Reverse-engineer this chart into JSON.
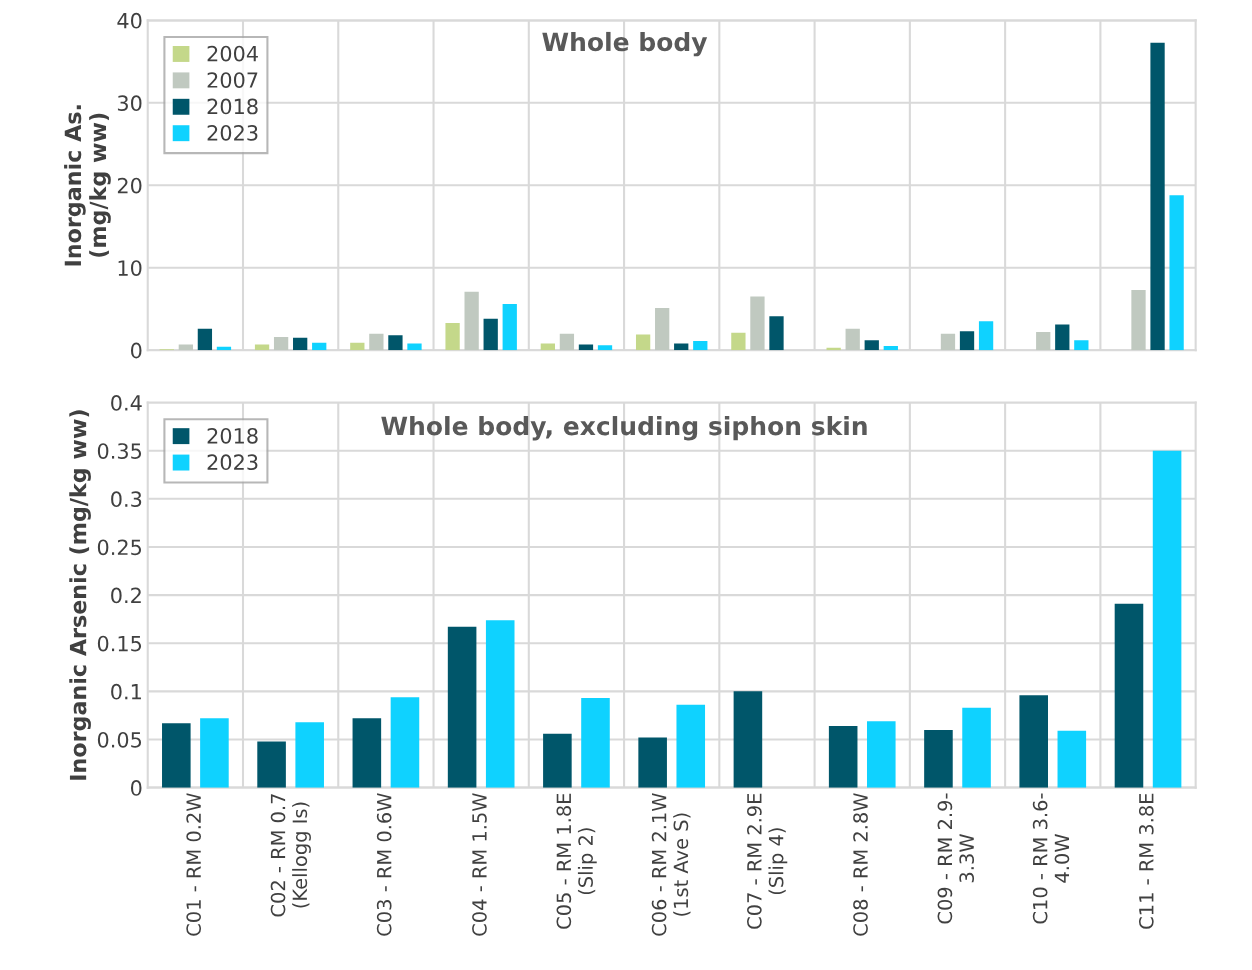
{
  "chart_data": [
    {
      "type": "bar",
      "title": "Whole body",
      "ylabel": "Inorganic As.\n(mg/kg ww)",
      "categories": [
        null,
        null,
        null,
        null,
        null,
        null,
        null,
        null,
        null,
        null,
        null
      ],
      "series": [
        {
          "name": "2004",
          "color": "#c4d88a",
          "values": [
            0.1,
            0.7,
            0.9,
            3.3,
            0.8,
            1.9,
            2.1,
            0.3,
            null,
            null,
            null
          ]
        },
        {
          "name": "2007",
          "color": "#c0c9c0",
          "values": [
            0.7,
            1.6,
            2.0,
            7.1,
            2.0,
            5.1,
            6.5,
            2.6,
            2.0,
            2.2,
            7.3
          ]
        },
        {
          "name": "2018",
          "color": "#00566a",
          "values": [
            2.6,
            1.5,
            1.8,
            3.8,
            0.7,
            0.8,
            4.1,
            1.2,
            2.3,
            3.1,
            37.3
          ]
        },
        {
          "name": "2023",
          "color": "#0fd2ff",
          "values": [
            0.4,
            0.9,
            0.8,
            5.6,
            0.6,
            1.1,
            null,
            0.5,
            3.5,
            1.2,
            18.8
          ]
        }
      ],
      "ylim": [
        0,
        40
      ],
      "yticks": [
        0,
        10,
        20,
        30,
        40
      ],
      "grid": true,
      "legend": "top left",
      "tick_labels": "y"
    },
    {
      "type": "bar",
      "title": "Whole body, excluding siphon skin",
      "ylabel": "Inorganic Arsenic (mg/kg ww)",
      "categories": [
        "C01 - RM 0.2W",
        "C02 - RM 0.7\n(Kellogg Is)",
        "C03 - RM 0.6W",
        "C04 - RM 1.5W",
        "C05 - RM 1.8E\n(Slip 2)",
        "C06 - RM 2.1W\n(1st Ave S)",
        "C07 - RM 2.9E\n(Slip 4)",
        "C08 - RM 2.8W",
        "C09 - RM 2.9-\n3.3W",
        "C10 - RM 3.6-\n4.0W",
        "C11 - RM 3.8E"
      ],
      "series": [
        {
          "name": "2018",
          "color": "#00566a",
          "values": [
            0.067,
            0.048,
            0.072,
            0.167,
            0.056,
            0.052,
            0.1,
            0.064,
            0.06,
            0.096,
            0.191
          ]
        },
        {
          "name": "2023",
          "color": "#0fd2ff",
          "values": [
            0.072,
            0.068,
            0.094,
            0.174,
            0.093,
            0.086,
            null,
            0.069,
            0.083,
            0.059,
            0.35
          ]
        }
      ],
      "ylim": [
        0,
        0.4
      ],
      "yticks": [
        0,
        0.05,
        0.1,
        0.15,
        0.2,
        0.25,
        0.3,
        0.35,
        0.4
      ],
      "grid": true,
      "legend": "top left"
    }
  ]
}
